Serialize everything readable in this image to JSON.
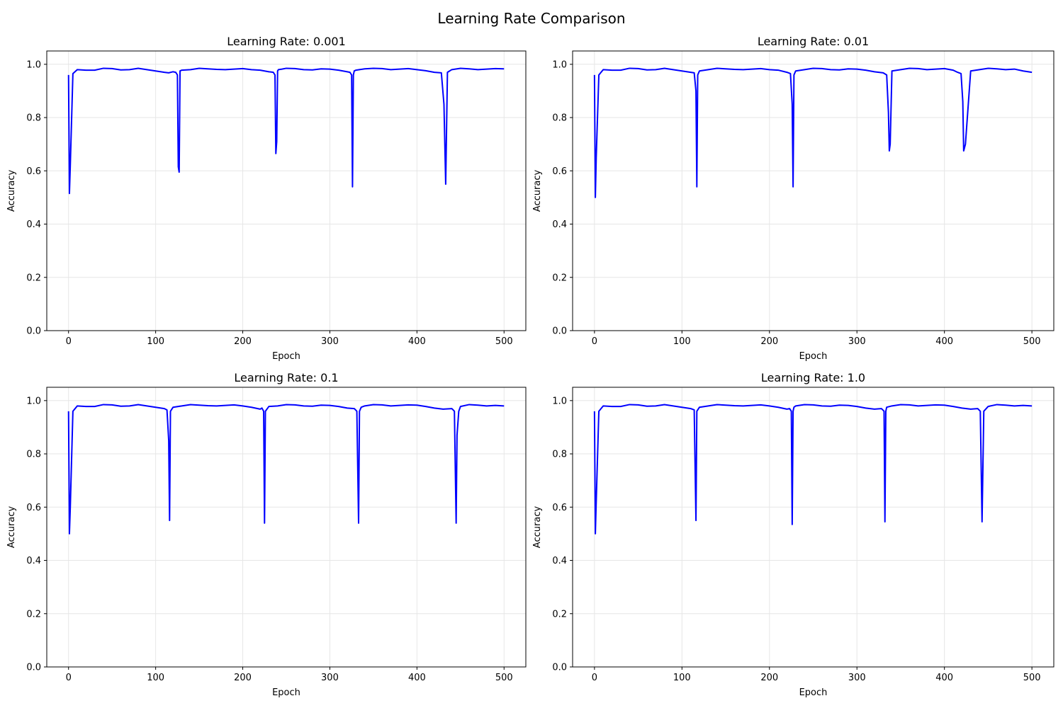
{
  "figure": {
    "title": "Learning Rate Comparison",
    "line_color": "#0000ff",
    "grid_color": "#e6e6e6",
    "axis_color": "#000000"
  },
  "chart_data": [
    {
      "type": "line",
      "title": "Learning Rate: 0.001",
      "xlabel": "Epoch",
      "ylabel": "Accuracy",
      "xlim": [
        -25,
        525
      ],
      "ylim": [
        0.0,
        1.05
      ],
      "xticks": [
        "0",
        "100",
        "200",
        "300",
        "400",
        "500"
      ],
      "yticks": [
        "0.0",
        "0.2",
        "0.4",
        "0.6",
        "0.8",
        "1.0"
      ],
      "grid": true,
      "series": [
        {
          "x": [
            0,
            1,
            2,
            5,
            10,
            20,
            30,
            40,
            50,
            60,
            70,
            80,
            90,
            100,
            110,
            115,
            120,
            123,
            125,
            126,
            127,
            128,
            130,
            140,
            150,
            160,
            170,
            180,
            190,
            200,
            210,
            220,
            230,
            235,
            237,
            238,
            239,
            240,
            241,
            245,
            250,
            260,
            270,
            280,
            290,
            300,
            310,
            320,
            323,
            325,
            326,
            327,
            328,
            330,
            340,
            350,
            360,
            370,
            380,
            390,
            400,
            410,
            420,
            428,
            431,
            433,
            435,
            440,
            450,
            460,
            470,
            480,
            490,
            500
          ],
          "y": [
            0.96,
            0.515,
            0.62,
            0.965,
            0.98,
            0.978,
            0.978,
            0.985,
            0.984,
            0.979,
            0.98,
            0.985,
            0.98,
            0.975,
            0.97,
            0.968,
            0.972,
            0.97,
            0.96,
            0.615,
            0.595,
            0.975,
            0.978,
            0.98,
            0.985,
            0.983,
            0.981,
            0.98,
            0.982,
            0.984,
            0.98,
            0.978,
            0.972,
            0.97,
            0.96,
            0.665,
            0.71,
            0.975,
            0.98,
            0.982,
            0.985,
            0.984,
            0.98,
            0.979,
            0.983,
            0.982,
            0.978,
            0.972,
            0.97,
            0.96,
            0.54,
            0.96,
            0.975,
            0.978,
            0.983,
            0.985,
            0.984,
            0.98,
            0.982,
            0.984,
            0.98,
            0.976,
            0.97,
            0.968,
            0.85,
            0.55,
            0.97,
            0.98,
            0.985,
            0.983,
            0.98,
            0.982,
            0.984,
            0.983
          ]
        }
      ]
    },
    {
      "type": "line",
      "title": "Learning Rate: 0.01",
      "xlabel": "Epoch",
      "ylabel": "Accuracy",
      "xlim": [
        -25,
        525
      ],
      "ylim": [
        0.0,
        1.05
      ],
      "xticks": [
        "0",
        "100",
        "200",
        "300",
        "400",
        "500"
      ],
      "yticks": [
        "0.0",
        "0.2",
        "0.4",
        "0.6",
        "0.8",
        "1.0"
      ],
      "grid": true,
      "series": [
        {
          "x": [
            0,
            1,
            2,
            5,
            10,
            20,
            30,
            40,
            50,
            60,
            70,
            80,
            90,
            100,
            110,
            114,
            116,
            117,
            118,
            120,
            130,
            140,
            150,
            160,
            170,
            180,
            190,
            200,
            210,
            220,
            224,
            226,
            227,
            228,
            230,
            240,
            250,
            260,
            270,
            280,
            290,
            300,
            310,
            320,
            330,
            334,
            336,
            337,
            338,
            340,
            350,
            360,
            370,
            380,
            390,
            400,
            410,
            415,
            419,
            421,
            422,
            424,
            430,
            440,
            450,
            460,
            470,
            480,
            490,
            500
          ],
          "y": [
            0.96,
            0.5,
            0.65,
            0.96,
            0.98,
            0.978,
            0.978,
            0.985,
            0.984,
            0.979,
            0.98,
            0.985,
            0.98,
            0.975,
            0.97,
            0.968,
            0.9,
            0.54,
            0.96,
            0.975,
            0.98,
            0.985,
            0.983,
            0.981,
            0.98,
            0.982,
            0.984,
            0.98,
            0.978,
            0.97,
            0.965,
            0.85,
            0.54,
            0.96,
            0.975,
            0.98,
            0.985,
            0.984,
            0.98,
            0.979,
            0.983,
            0.982,
            0.978,
            0.972,
            0.968,
            0.96,
            0.82,
            0.675,
            0.7,
            0.975,
            0.98,
            0.985,
            0.984,
            0.98,
            0.982,
            0.984,
            0.978,
            0.97,
            0.965,
            0.86,
            0.675,
            0.7,
            0.975,
            0.98,
            0.985,
            0.983,
            0.98,
            0.982,
            0.975,
            0.97
          ]
        }
      ]
    },
    {
      "type": "line",
      "title": "Learning Rate: 0.1",
      "xlabel": "Epoch",
      "ylabel": "Accuracy",
      "xlim": [
        -25,
        525
      ],
      "ylim": [
        0.0,
        1.05
      ],
      "xticks": [
        "0",
        "100",
        "200",
        "300",
        "400",
        "500"
      ],
      "yticks": [
        "0.0",
        "0.2",
        "0.4",
        "0.6",
        "0.8",
        "1.0"
      ],
      "grid": true,
      "series": [
        {
          "x": [
            0,
            1,
            2,
            5,
            10,
            20,
            30,
            40,
            50,
            60,
            70,
            80,
            90,
            100,
            110,
            113,
            115,
            116,
            117,
            120,
            130,
            140,
            150,
            160,
            170,
            180,
            190,
            200,
            210,
            220,
            222,
            224,
            225,
            226,
            230,
            240,
            250,
            260,
            270,
            280,
            290,
            300,
            310,
            320,
            328,
            331,
            333,
            334,
            336,
            340,
            350,
            360,
            370,
            380,
            390,
            400,
            410,
            420,
            430,
            440,
            443,
            445,
            446,
            448,
            450,
            460,
            470,
            480,
            490,
            500
          ],
          "y": [
            0.96,
            0.5,
            0.6,
            0.96,
            0.98,
            0.978,
            0.978,
            0.985,
            0.984,
            0.979,
            0.98,
            0.985,
            0.98,
            0.975,
            0.97,
            0.965,
            0.85,
            0.55,
            0.96,
            0.975,
            0.98,
            0.985,
            0.983,
            0.981,
            0.98,
            0.982,
            0.984,
            0.98,
            0.975,
            0.968,
            0.972,
            0.96,
            0.54,
            0.96,
            0.978,
            0.98,
            0.985,
            0.984,
            0.98,
            0.979,
            0.983,
            0.982,
            0.978,
            0.972,
            0.97,
            0.96,
            0.54,
            0.96,
            0.975,
            0.98,
            0.985,
            0.984,
            0.98,
            0.982,
            0.984,
            0.983,
            0.978,
            0.972,
            0.968,
            0.97,
            0.96,
            0.54,
            0.87,
            0.96,
            0.978,
            0.985,
            0.983,
            0.98,
            0.982,
            0.98
          ]
        }
      ]
    },
    {
      "type": "line",
      "title": "Learning Rate: 1.0",
      "xlabel": "Epoch",
      "ylabel": "Accuracy",
      "xlim": [
        -25,
        525
      ],
      "ylim": [
        0.0,
        1.05
      ],
      "xticks": [
        "0",
        "100",
        "200",
        "300",
        "400",
        "500"
      ],
      "yticks": [
        "0.0",
        "0.2",
        "0.4",
        "0.6",
        "0.8",
        "1.0"
      ],
      "grid": true,
      "series": [
        {
          "x": [
            0,
            1,
            2,
            5,
            10,
            20,
            30,
            40,
            50,
            60,
            70,
            80,
            90,
            100,
            110,
            114,
            116,
            117,
            120,
            130,
            140,
            150,
            160,
            170,
            180,
            190,
            200,
            210,
            220,
            223,
            225,
            226,
            227,
            228,
            230,
            240,
            250,
            260,
            270,
            280,
            290,
            300,
            310,
            320,
            328,
            331,
            332,
            333,
            334,
            340,
            350,
            360,
            370,
            380,
            390,
            400,
            410,
            420,
            430,
            438,
            441,
            443,
            445,
            450,
            460,
            470,
            480,
            490,
            500
          ],
          "y": [
            0.96,
            0.5,
            0.62,
            0.96,
            0.98,
            0.978,
            0.978,
            0.985,
            0.984,
            0.979,
            0.98,
            0.985,
            0.98,
            0.975,
            0.97,
            0.965,
            0.55,
            0.96,
            0.975,
            0.98,
            0.985,
            0.983,
            0.981,
            0.98,
            0.982,
            0.984,
            0.98,
            0.975,
            0.968,
            0.97,
            0.96,
            0.535,
            0.96,
            0.975,
            0.98,
            0.985,
            0.984,
            0.98,
            0.979,
            0.983,
            0.982,
            0.978,
            0.972,
            0.968,
            0.97,
            0.96,
            0.545,
            0.96,
            0.975,
            0.98,
            0.985,
            0.984,
            0.98,
            0.982,
            0.984,
            0.983,
            0.978,
            0.972,
            0.968,
            0.97,
            0.96,
            0.545,
            0.96,
            0.978,
            0.985,
            0.983,
            0.98,
            0.982,
            0.98
          ]
        }
      ]
    }
  ]
}
